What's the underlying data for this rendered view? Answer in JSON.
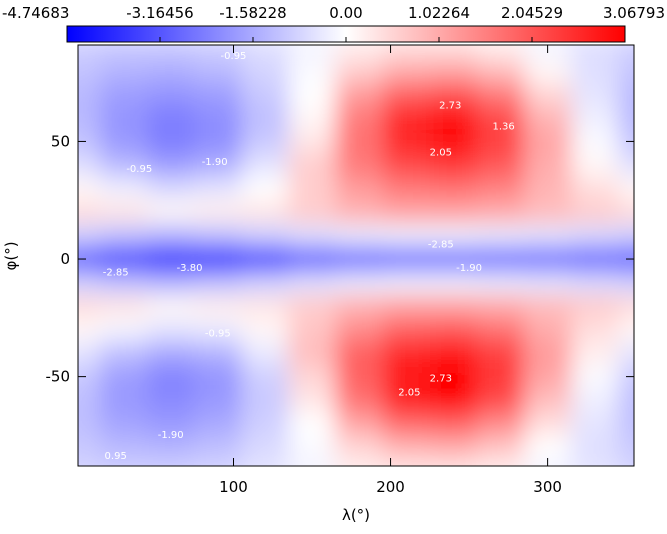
{
  "chart_data": {
    "type": "heatmap",
    "xlabel": "λ(°)",
    "ylabel": "φ(°)",
    "x": [
      0,
      30,
      60,
      90,
      120,
      150,
      180,
      210,
      240,
      270,
      300,
      330,
      360
    ],
    "y": [
      90,
      80,
      70,
      60,
      50,
      40,
      30,
      20,
      10,
      0,
      -10,
      -20,
      -30,
      -40,
      -50,
      -60,
      -70,
      -80,
      -90
    ],
    "z": [
      [
        -0.9,
        -1.0,
        -1.0,
        -0.9,
        -0.6,
        -0.2,
        0.2,
        0.4,
        0.4,
        0.2,
        -0.2,
        -0.6,
        -0.9
      ],
      [
        -1.1,
        -1.4,
        -1.5,
        -1.3,
        -0.8,
        -0.1,
        0.6,
        1.0,
        1.1,
        0.8,
        0.1,
        -0.6,
        -1.1
      ],
      [
        -1.3,
        -1.8,
        -2.0,
        -1.8,
        -1.0,
        0.0,
        1.2,
        1.9,
        2.1,
        1.6,
        0.5,
        -0.5,
        -1.3
      ],
      [
        -1.3,
        -2.0,
        -2.4,
        -2.1,
        -1.2,
        0.1,
        1.6,
        2.6,
        2.9,
        2.2,
        0.9,
        -0.3,
        -1.3
      ],
      [
        -1.1,
        -1.9,
        -2.4,
        -2.1,
        -1.0,
        0.3,
        1.7,
        2.6,
        2.9,
        2.3,
        1.1,
        -0.1,
        -1.1
      ],
      [
        -0.6,
        -1.3,
        -1.8,
        -1.5,
        -0.5,
        0.6,
        1.6,
        2.2,
        2.4,
        2.0,
        1.0,
        0.1,
        -0.6
      ],
      [
        0.1,
        -0.3,
        -0.7,
        -0.5,
        0.0,
        0.6,
        1.2,
        1.6,
        1.7,
        1.5,
        0.9,
        0.4,
        0.1
      ],
      [
        0.4,
        0.3,
        0.1,
        0.2,
        0.3,
        0.6,
        0.9,
        1.1,
        1.1,
        1.0,
        0.8,
        0.6,
        0.4
      ],
      [
        -0.9,
        -1.2,
        -1.4,
        -1.2,
        -0.9,
        -0.6,
        -0.4,
        -0.3,
        -0.3,
        -0.4,
        -0.5,
        -0.7,
        -0.9
      ],
      [
        -3.0,
        -3.6,
        -4.3,
        -4.5,
        -3.8,
        -3.1,
        -2.9,
        -2.8,
        -2.8,
        -2.8,
        -2.8,
        -2.9,
        -3.0
      ],
      [
        -0.9,
        -1.2,
        -1.4,
        -1.2,
        -0.9,
        -0.6,
        -0.4,
        -0.3,
        -0.3,
        -0.4,
        -0.5,
        -0.7,
        -0.9
      ],
      [
        0.4,
        0.3,
        0.1,
        0.2,
        0.3,
        0.6,
        0.9,
        1.1,
        1.1,
        1.0,
        0.8,
        0.6,
        0.4
      ],
      [
        0.1,
        -0.2,
        -0.5,
        -0.4,
        0.1,
        0.7,
        1.4,
        1.9,
        2.0,
        1.7,
        1.0,
        0.4,
        0.1
      ],
      [
        -0.5,
        -1.2,
        -1.6,
        -1.4,
        -0.4,
        0.8,
        1.9,
        2.6,
        2.8,
        2.3,
        1.2,
        0.2,
        -0.5
      ],
      [
        -1.0,
        -1.8,
        -2.3,
        -2.0,
        -0.9,
        0.5,
        1.9,
        2.8,
        3.0,
        2.4,
        1.1,
        -0.1,
        -1.0
      ],
      [
        -1.2,
        -1.9,
        -2.2,
        -1.9,
        -1.0,
        0.3,
        1.7,
        2.7,
        3.0,
        2.2,
        0.8,
        -0.3,
        -1.2
      ],
      [
        -1.2,
        -1.7,
        -1.9,
        -1.6,
        -0.9,
        0.0,
        1.1,
        1.8,
        1.9,
        1.4,
        0.4,
        -0.5,
        -1.2
      ],
      [
        -1.0,
        -1.3,
        -1.4,
        -1.2,
        -0.7,
        -0.1,
        0.5,
        0.9,
        1.0,
        0.7,
        0.0,
        -0.6,
        -1.0
      ],
      [
        -0.8,
        -0.9,
        -0.9,
        -0.8,
        -0.5,
        -0.2,
        0.2,
        0.3,
        0.3,
        0.2,
        -0.2,
        -0.5,
        -0.8
      ]
    ],
    "xlim": [
      1,
      355
    ],
    "ylim": [
      -88,
      91
    ],
    "xticks": [
      100,
      200,
      300
    ],
    "yticks": [
      50,
      0,
      -50
    ],
    "zlim": [
      -4.74683,
      3.06793
    ],
    "zticks": [
      -4.74683,
      -3.16456,
      -1.58228,
      {
        "value": 0,
        "label": "0.00"
      },
      1.02264,
      2.04529,
      3.06793
    ],
    "colormap": [
      "#0000ff",
      "#ffffff",
      "#ff0000"
    ],
    "annotations": [
      {
        "text": "2.73",
        "x": 238,
        "y": 64
      },
      {
        "text": "2.05",
        "x": 232,
        "y": 44
      },
      {
        "text": "1.36",
        "x": 272,
        "y": 55
      },
      {
        "text": "-1.90",
        "x": 88,
        "y": 40
      },
      {
        "text": "-0.95",
        "x": 40,
        "y": 37
      },
      {
        "text": "-0.95",
        "x": 100,
        "y": 85
      },
      {
        "text": "-2.85",
        "x": 232,
        "y": 5
      },
      {
        "text": "-2.85",
        "x": 25,
        "y": -7
      },
      {
        "text": "-3.80",
        "x": 72,
        "y": -5
      },
      {
        "text": "-1.90",
        "x": 250,
        "y": -5
      },
      {
        "text": "2.73",
        "x": 232,
        "y": -52
      },
      {
        "text": "2.05",
        "x": 212,
        "y": -58
      },
      {
        "text": "-0.95",
        "x": 90,
        "y": -33
      },
      {
        "text": "-1.90",
        "x": 60,
        "y": -76
      },
      {
        "text": "0.95",
        "x": 25,
        "y": -85
      }
    ]
  }
}
